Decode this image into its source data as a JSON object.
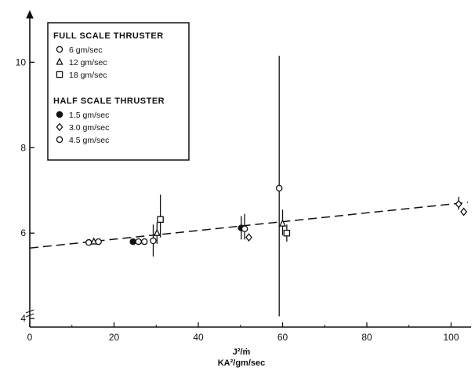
{
  "chart_data": {
    "type": "scatter",
    "xlabel_line1": "J²/ṁ",
    "xlabel_line2": "KA²/gm/sec",
    "ylabel": "",
    "xlim": [
      0,
      104
    ],
    "ylim": [
      3.8,
      11.2
    ],
    "x_ticks": [
      0,
      20,
      40,
      60,
      80,
      100
    ],
    "y_ticks": [
      4,
      6,
      8,
      10
    ],
    "grid": false,
    "legend_placement": "top-left",
    "legend": {
      "groups": [
        {
          "heading": "FULL SCALE THRUSTER",
          "entries": [
            {
              "marker": "circle-open",
              "label": "6 gm/sec"
            },
            {
              "marker": "triangle-open",
              "label": "12 gm/sec"
            },
            {
              "marker": "square-open",
              "label": "18 gm/sec"
            }
          ]
        },
        {
          "heading": "HALF SCALE THRUSTER",
          "entries": [
            {
              "marker": "circle-filled",
              "label": "1.5 gm/sec"
            },
            {
              "marker": "diamond-open",
              "label": "3.0 gm/sec"
            },
            {
              "marker": "circle-open",
              "label": "4.5 gm/sec"
            }
          ]
        }
      ]
    },
    "fit_line": {
      "style": "dashed",
      "x": [
        0,
        104
      ],
      "y": [
        5.65,
        6.72
      ]
    },
    "points": [
      {
        "x": 14.0,
        "y": 5.78,
        "marker": "circle-open"
      },
      {
        "x": 15.2,
        "y": 5.8,
        "marker": "triangle-open"
      },
      {
        "x": 16.3,
        "y": 5.8,
        "marker": "circle-open"
      },
      {
        "x": 24.5,
        "y": 5.8,
        "marker": "circle-filled"
      },
      {
        "x": 25.8,
        "y": 5.8,
        "marker": "circle-open"
      },
      {
        "x": 27.2,
        "y": 5.8,
        "marker": "circle-open"
      },
      {
        "x": 29.3,
        "y": 5.82,
        "marker": "circle-open",
        "err": [
          5.45,
          6.2
        ]
      },
      {
        "x": 30.2,
        "y": 6.0,
        "marker": "triangle-open",
        "err": [
          5.75,
          6.25
        ]
      },
      {
        "x": 31.0,
        "y": 6.32,
        "marker": "square-open",
        "err": [
          5.9,
          6.9
        ]
      },
      {
        "x": 50.2,
        "y": 6.12,
        "marker": "circle-filled",
        "err": [
          5.85,
          6.4
        ]
      },
      {
        "x": 51.0,
        "y": 6.1,
        "marker": "circle-open",
        "err": [
          5.85,
          6.45
        ]
      },
      {
        "x": 52.0,
        "y": 5.9,
        "marker": "diamond-open"
      },
      {
        "x": 59.2,
        "y": 7.05,
        "marker": "circle-open",
        "err": [
          4.05,
          10.15
        ]
      },
      {
        "x": 60.0,
        "y": 6.22,
        "marker": "triangle-open",
        "err": [
          5.95,
          6.55
        ]
      },
      {
        "x": 61.0,
        "y": 6.0,
        "marker": "square-open",
        "err": [
          5.8,
          6.2
        ]
      },
      {
        "x": 101.8,
        "y": 6.68,
        "marker": "diamond-open",
        "err": [
          6.55,
          6.85
        ]
      },
      {
        "x": 103.0,
        "y": 6.5,
        "marker": "diamond-open"
      }
    ]
  }
}
